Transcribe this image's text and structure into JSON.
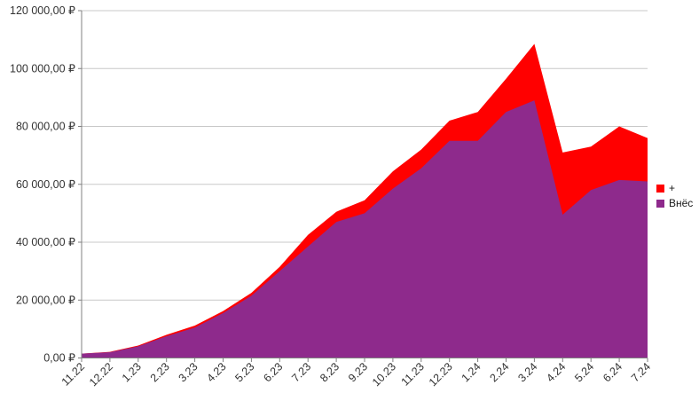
{
  "chart_data": {
    "type": "area",
    "stacked": true,
    "title": "",
    "xlabel": "",
    "ylabel": "",
    "categories": [
      "11.22",
      "12.22",
      "1.23",
      "2.23",
      "3.23",
      "4.23",
      "5.23",
      "6.23",
      "7.23",
      "8.23",
      "9.23",
      "10.23",
      "11.23",
      "12.23",
      "1.24",
      "2.24",
      "3.24",
      "4.24",
      "5.24",
      "6.24",
      "7.24"
    ],
    "series": [
      {
        "name": "+",
        "color": "#ff0000",
        "values": [
          0,
          100,
          300,
          500,
          700,
          700,
          1000,
          1500,
          4000,
          3500,
          4500,
          6000,
          6500,
          7000,
          10000,
          11500,
          19500,
          21500,
          15000,
          18500,
          15000
        ]
      },
      {
        "name": "Внёс",
        "color": "#8e2a8c",
        "values": [
          1500,
          2000,
          4000,
          7500,
          10500,
          15500,
          21500,
          30000,
          38500,
          47000,
          50000,
          58500,
          65500,
          75000,
          75000,
          85000,
          89000,
          49500,
          58000,
          61500,
          61000
        ]
      }
    ],
    "stack_order": [
      "Внёс",
      "+"
    ],
    "stacked_totals": [
      1500,
      2100,
      4300,
      8000,
      11200,
      16200,
      22500,
      31500,
      42500,
      50500,
      54500,
      64500,
      72000,
      82000,
      85000,
      96500,
      108500,
      71000,
      73000,
      80000,
      76000
    ],
    "ylim": [
      0,
      120000
    ],
    "ytick_step": 20000,
    "ytick_labels": [
      "0,00 ₽",
      "20 000,00 ₽",
      "40 000,00 ₽",
      "60 000,00 ₽",
      "80 000,00 ₽",
      "100 000,00 ₽",
      "120 000,00 ₽"
    ],
    "grid": "horizontal",
    "legend_position": "right",
    "axis_color": "#808080",
    "gridline_color": "#c8c8c8",
    "label_color": "#333333"
  }
}
